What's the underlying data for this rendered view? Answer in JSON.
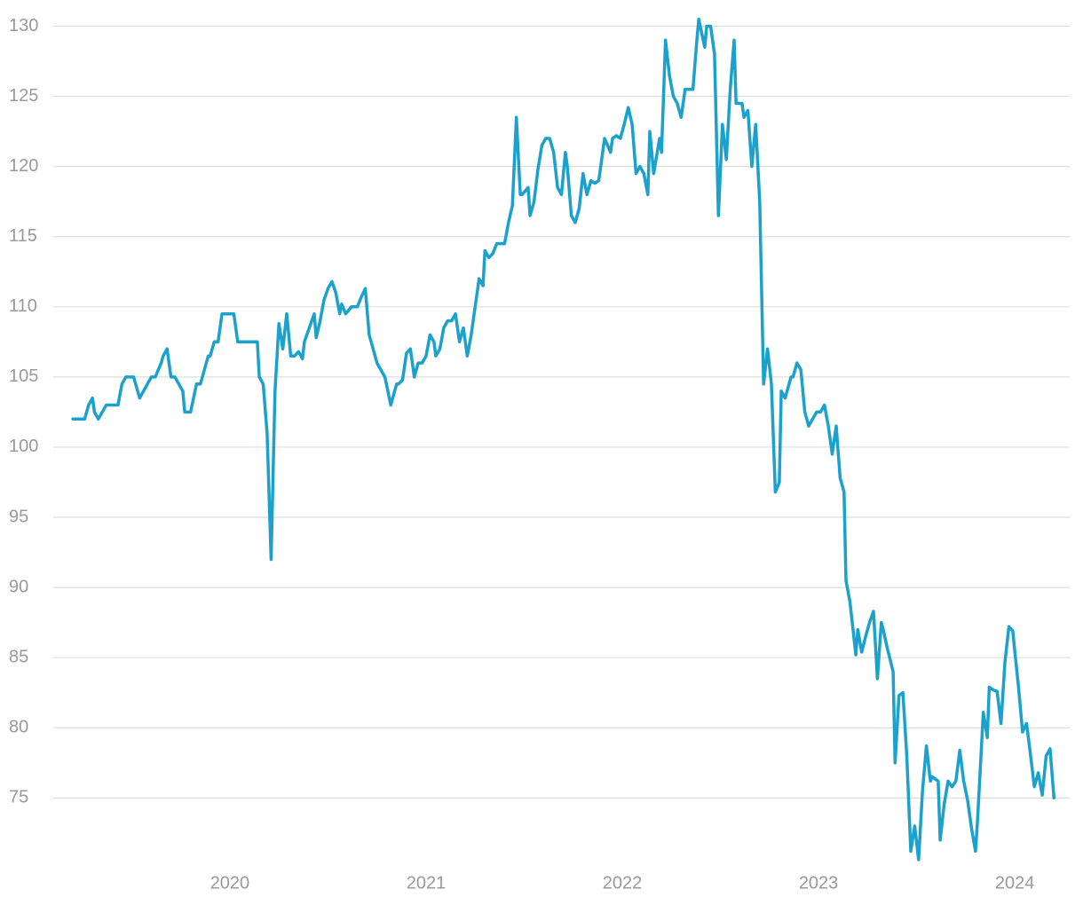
{
  "chart_data": {
    "type": "line",
    "x": [
      2019.2,
      2019.26,
      2019.28,
      2019.3,
      2019.31,
      2019.33,
      2019.37,
      2019.43,
      2019.45,
      2019.47,
      2019.51,
      2019.52,
      2019.54,
      2019.58,
      2019.6,
      2019.62,
      2019.65,
      2019.66,
      2019.68,
      2019.7,
      2019.72,
      2019.76,
      2019.77,
      2019.8,
      2019.83,
      2019.85,
      2019.89,
      2019.9,
      2019.92,
      2019.94,
      2019.96,
      2020.02,
      2020.04,
      2020.14,
      2020.15,
      2020.17,
      2020.19,
      2020.21,
      2020.23,
      2020.25,
      2020.27,
      2020.29,
      2020.31,
      2020.33,
      2020.35,
      2020.37,
      2020.38,
      2020.43,
      2020.44,
      2020.46,
      2020.48,
      2020.5,
      2020.52,
      2020.54,
      2020.56,
      2020.57,
      2020.59,
      2020.62,
      2020.65,
      2020.67,
      2020.69,
      2020.71,
      2020.73,
      2020.75,
      2020.79,
      2020.82,
      2020.85,
      2020.86,
      2020.88,
      2020.9,
      2020.92,
      2020.94,
      2020.96,
      2020.98,
      2021.0,
      2021.02,
      2021.04,
      2021.05,
      2021.07,
      2021.09,
      2021.11,
      2021.13,
      2021.15,
      2021.17,
      2021.19,
      2021.21,
      2021.23,
      2021.24,
      2021.27,
      2021.29,
      2021.3,
      2021.32,
      2021.34,
      2021.36,
      2021.4,
      2021.42,
      2021.44,
      2021.46,
      2021.48,
      2021.49,
      2021.52,
      2021.53,
      2021.55,
      2021.57,
      2021.59,
      2021.61,
      2021.63,
      2021.65,
      2021.67,
      2021.69,
      2021.71,
      2021.72,
      2021.74,
      2021.76,
      2021.78,
      2021.8,
      2021.82,
      2021.84,
      2021.86,
      2021.88,
      2021.9,
      2021.91,
      2021.94,
      2021.95,
      2021.97,
      2021.99,
      2022.01,
      2022.03,
      2022.05,
      2022.07,
      2022.09,
      2022.11,
      2022.13,
      2022.14,
      2022.16,
      2022.19,
      2022.2,
      2022.22,
      2022.24,
      2022.26,
      2022.28,
      2022.3,
      2022.32,
      2022.36,
      2022.38,
      2022.39,
      2022.42,
      2022.43,
      2022.45,
      2022.47,
      2022.49,
      2022.51,
      2022.53,
      2022.55,
      2022.57,
      2022.58,
      2022.61,
      2022.62,
      2022.64,
      2022.66,
      2022.68,
      2022.7,
      2022.72,
      2022.74,
      2022.76,
      2022.78,
      2022.8,
      2022.81,
      2022.83,
      2022.86,
      2022.87,
      2022.89,
      2022.91,
      2022.93,
      2022.95,
      2022.97,
      2022.99,
      2023.01,
      2023.03,
      2023.05,
      2023.07,
      2023.09,
      2023.11,
      2023.13,
      2023.14,
      2023.16,
      2023.19,
      2023.2,
      2023.22,
      2023.24,
      2023.26,
      2023.28,
      2023.3,
      2023.32,
      2023.33,
      2023.35,
      2023.38,
      2023.39,
      2023.41,
      2023.43,
      2023.45,
      2023.47,
      2023.49,
      2023.51,
      2023.53,
      2023.55,
      2023.57,
      2023.58,
      2023.61,
      2023.62,
      2023.64,
      2023.66,
      2023.68,
      2023.7,
      2023.72,
      2023.74,
      2023.76,
      2023.78,
      2023.8,
      2023.81,
      2023.84,
      2023.86,
      2023.87,
      2023.89,
      2023.91,
      2023.93,
      2023.95,
      2023.97,
      2023.99,
      2024.0,
      2024.02,
      2024.04,
      2024.06,
      2024.08,
      2024.1,
      2024.12,
      2024.14,
      2024.16,
      2024.18,
      2024.2
    ],
    "series": [
      {
        "color": "#1ba1cc",
        "values": [
          102,
          102,
          103,
          103.5,
          102.5,
          102,
          103,
          103,
          104.5,
          105,
          105,
          104.5,
          103.5,
          104.5,
          105,
          105,
          106,
          106.5,
          107,
          105,
          105,
          104,
          102.5,
          102.5,
          104.5,
          104.5,
          106.5,
          106.5,
          107.5,
          107.5,
          109.5,
          109.5,
          107.5,
          107.5,
          105,
          104.5,
          101,
          92,
          104,
          108.8,
          107,
          109.5,
          106.5,
          106.5,
          106.8,
          106.3,
          107.5,
          109.5,
          107.8,
          109,
          110.5,
          111.3,
          111.8,
          111,
          109.5,
          110.2,
          109.5,
          110,
          110,
          110.7,
          111.3,
          108,
          107,
          106,
          105,
          103,
          104.5,
          104.5,
          104.8,
          106.7,
          107,
          105,
          106,
          106,
          106.5,
          108,
          107.5,
          106.5,
          107,
          108.5,
          109,
          109,
          109.5,
          107.5,
          108.5,
          106.5,
          108,
          109,
          112,
          111.5,
          114,
          113.5,
          113.8,
          114.5,
          114.5,
          116,
          117.2,
          123.5,
          118,
          118,
          118.5,
          116.5,
          117.5,
          119.8,
          121.5,
          122,
          122,
          121,
          118.5,
          118,
          121,
          120,
          116.5,
          116,
          117,
          119.5,
          118,
          119,
          118.8,
          119,
          121,
          122,
          121,
          122,
          122.2,
          122,
          123,
          124.2,
          123,
          119.5,
          120,
          119.5,
          118,
          122.5,
          119.5,
          122,
          121,
          129,
          126.5,
          125,
          124.5,
          123.5,
          125.5,
          125.5,
          129,
          130.5,
          128.5,
          130,
          130,
          128,
          116.5,
          123,
          120.5,
          125.5,
          129,
          124.5,
          124.5,
          123.5,
          124,
          120,
          123,
          117.5,
          104.5,
          107,
          104.5,
          96.8,
          97.5,
          104,
          103.5,
          105,
          105,
          106,
          105.5,
          102.5,
          101.5,
          102,
          102.5,
          102.5,
          103,
          101.5,
          99.5,
          101.5,
          97.8,
          96.8,
          90.5,
          89,
          85.2,
          87,
          85.4,
          86.5,
          87.5,
          88.3,
          83.5,
          87.5,
          87,
          85.7,
          84,
          77.5,
          82.3,
          82.5,
          78,
          71.2,
          73,
          70.6,
          75.5,
          78.7,
          76.2,
          76.5,
          76.2,
          72,
          74.5,
          76.2,
          75.8,
          76.2,
          78.4,
          76.2,
          74.8,
          72.8,
          71.2,
          73.3,
          81.1,
          79.3,
          82.9,
          82.7,
          82.6,
          80.3,
          84.7,
          87.2,
          86.9,
          85.5,
          82.8,
          79.7,
          80.3,
          78.1,
          75.8,
          76.8,
          75.2,
          78,
          78.5,
          75
        ]
      }
    ],
    "xlim": [
      2019.1,
      2024.28
    ],
    "xticks": [
      2020,
      2021,
      2022,
      2023,
      2024
    ],
    "ylim": [
      69.9,
      130.6
    ],
    "yticks": [
      75,
      80,
      85,
      90,
      95,
      100,
      105,
      110,
      115,
      120,
      125,
      130
    ],
    "grid": true
  }
}
